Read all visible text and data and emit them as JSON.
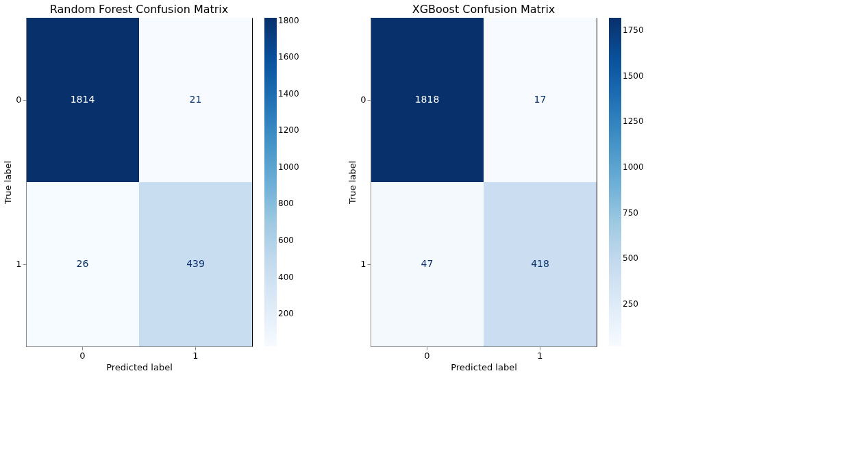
{
  "chart_data": [
    {
      "type": "heatmap",
      "title": "Random Forest Confusion Matrix",
      "xlabel": "Predicted label",
      "ylabel": "True label",
      "categories": [
        "0",
        "1"
      ],
      "y_categories": [
        "0",
        "1"
      ],
      "cells": [
        [
          1814,
          21
        ],
        [
          26,
          439
        ]
      ],
      "clim": [
        21,
        1814
      ],
      "cticks": [
        200,
        400,
        600,
        800,
        1000,
        1200,
        1400,
        1600,
        1800
      ],
      "data_labels": true
    },
    {
      "type": "heatmap",
      "title": "XGBoost Confusion Matrix",
      "xlabel": "Predicted label",
      "ylabel": "True label",
      "categories": [
        "0",
        "1"
      ],
      "y_categories": [
        "0",
        "1"
      ],
      "cells": [
        [
          1818,
          17
        ],
        [
          47,
          418
        ]
      ],
      "clim": [
        17,
        1818
      ],
      "cticks": [
        250,
        500,
        750,
        1000,
        1250,
        1500,
        1750
      ],
      "data_labels": true
    }
  ]
}
